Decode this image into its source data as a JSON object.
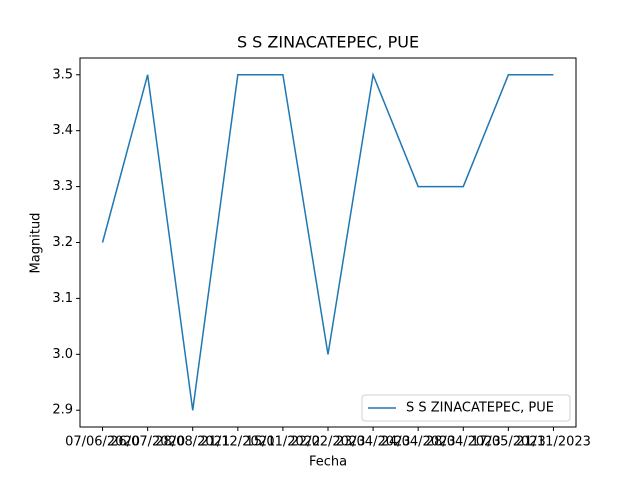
{
  "chart_data": {
    "type": "line",
    "title": "S S ZINACATEPEC, PUE",
    "xlabel": "Fecha",
    "ylabel": "Magnitud",
    "categories": [
      "07/06/2020",
      "26/07/2020",
      "28/08/2021",
      "21/12/2021",
      "15/01/2022",
      "22/02/2023",
      "23/04/2023",
      "24/04/2023",
      "28/04/2023",
      "17/05/2023",
      "21/11/2023"
    ],
    "series": [
      {
        "name": "S S ZINACATEPEC, PUE",
        "color": "#1f77b4",
        "values": [
          3.2,
          3.5,
          2.9,
          3.5,
          3.5,
          3.0,
          3.5,
          3.3,
          3.3,
          3.5,
          3.5
        ]
      }
    ],
    "ylim": [
      2.87,
      3.53
    ],
    "yticks": [
      2.9,
      {
        "value": 3,
        "label": "3.0"
      },
      3.1,
      3.2,
      3.3,
      3.4,
      3.5
    ],
    "legend": "lower right"
  }
}
